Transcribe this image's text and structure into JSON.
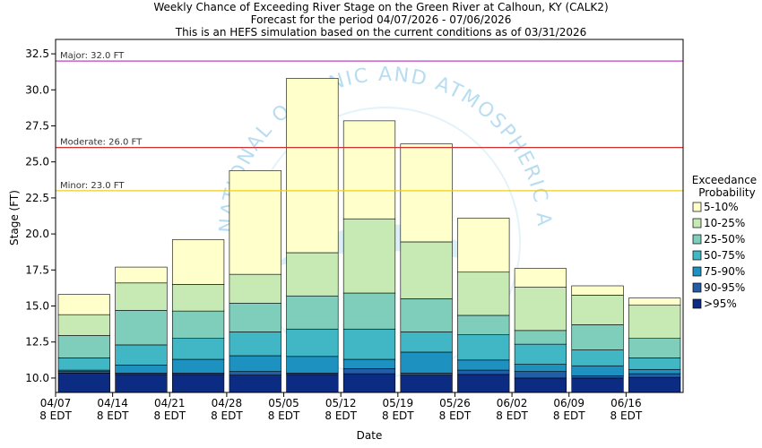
{
  "titles": [
    "Weekly Chance of Exceeding River Stage on the Green River at Calhoun, KY (CALK2)",
    "Forecast for the period 04/07/2026 - 07/06/2026",
    "This is an HEFS simulation based on the current conditions as of 03/31/2026"
  ],
  "watermark": {
    "text": "NATIONAL OCEANIC AND ATMOSPHERIC ADMINISTRATION",
    "color": "#6fbde6"
  },
  "chart_data": {
    "type": "bar",
    "subtype": "stacked-floating",
    "xlabel": "Date",
    "ylabel": "Stage (FT)",
    "ylim": [
      9.0,
      33.5
    ],
    "yticks": [
      "32.5",
      "30.0",
      "27.5",
      "25.0",
      "22.5",
      "20.0",
      "17.5",
      "15.0",
      "12.5",
      "10.0"
    ],
    "ytick_values": [
      32.5,
      30.0,
      27.5,
      25.0,
      22.5,
      20.0,
      17.5,
      15.0,
      12.5,
      10.0
    ],
    "xticks": [
      {
        "line1": "04/07",
        "line2": "8 EDT"
      },
      {
        "line1": "04/14",
        "line2": "8 EDT"
      },
      {
        "line1": "04/21",
        "line2": "8 EDT"
      },
      {
        "line1": "04/28",
        "line2": "8 EDT"
      },
      {
        "line1": "05/05",
        "line2": "8 EDT"
      },
      {
        "line1": "05/12",
        "line2": "8 EDT"
      },
      {
        "line1": "05/19",
        "line2": "8 EDT"
      },
      {
        "line1": "05/26",
        "line2": "8 EDT"
      },
      {
        "line1": "06/02",
        "line2": "8 EDT"
      },
      {
        "line1": "06/09",
        "line2": "8 EDT"
      },
      {
        "line1": "06/16",
        "line2": "8 EDT"
      }
    ],
    "grid": false,
    "legend": {
      "title_line1": "Exceedance",
      "title_line2": "Probability",
      "placement": "right",
      "items": [
        {
          "label": "5-10%",
          "color": "#ffffcc"
        },
        {
          "label": "10-25%",
          "color": "#c7e9b4"
        },
        {
          "label": "25-50%",
          "color": "#7fcdbb"
        },
        {
          "label": "50-75%",
          "color": "#41b6c4"
        },
        {
          "label": "75-90%",
          "color": "#1d91c0"
        },
        {
          "label": "90-95%",
          "color": "#225ea8"
        },
        {
          "label": ">95%",
          "color": "#0c2c84"
        }
      ]
    },
    "reference_lines": [
      {
        "label": "Major: 32.0 FT",
        "value": 32.0,
        "color": "#c040c0"
      },
      {
        "label": "Moderate: 26.0 FT",
        "value": 26.0,
        "color": "#d03030"
      },
      {
        "label": "Minor: 23.0 FT",
        "value": 23.0,
        "color": "#e8d020"
      }
    ],
    "weeks": [
      {
        "x": "04/07",
        "bands": [
          9.0,
          10.35,
          10.45,
          10.55,
          11.4,
          12.95,
          14.4,
          15.8
        ]
      },
      {
        "x": "04/14",
        "bands": [
          9.0,
          10.25,
          10.35,
          10.9,
          12.3,
          14.7,
          16.6,
          17.7
        ]
      },
      {
        "x": "04/21",
        "bands": [
          9.0,
          10.25,
          10.35,
          11.3,
          12.75,
          14.65,
          16.5,
          19.6
        ]
      },
      {
        "x": "04/28",
        "bands": [
          9.0,
          10.2,
          10.45,
          11.55,
          13.2,
          15.2,
          17.2,
          24.4
        ]
      },
      {
        "x": "05/05",
        "bands": [
          9.0,
          10.25,
          10.35,
          11.5,
          13.4,
          15.7,
          18.7,
          30.8
        ]
      },
      {
        "x": "05/12",
        "bands": [
          9.0,
          10.3,
          10.65,
          11.3,
          13.4,
          15.9,
          21.05,
          27.85
        ]
      },
      {
        "x": "05/19",
        "bands": [
          9.0,
          10.2,
          10.35,
          11.8,
          13.2,
          15.5,
          19.45,
          26.25
        ]
      },
      {
        "x": "05/26",
        "bands": [
          9.0,
          10.25,
          10.55,
          11.25,
          13.0,
          14.35,
          17.35,
          21.1
        ]
      },
      {
        "x": "06/02",
        "bands": [
          9.0,
          10.0,
          10.45,
          10.95,
          12.35,
          13.3,
          16.3,
          17.6
        ]
      },
      {
        "x": "06/09",
        "bands": [
          9.0,
          10.0,
          10.15,
          10.85,
          11.95,
          13.7,
          15.75,
          16.4
        ]
      },
      {
        "x": "06/16",
        "bands": [
          9.0,
          10.05,
          10.3,
          10.6,
          11.4,
          12.75,
          15.05,
          15.55
        ]
      }
    ]
  }
}
